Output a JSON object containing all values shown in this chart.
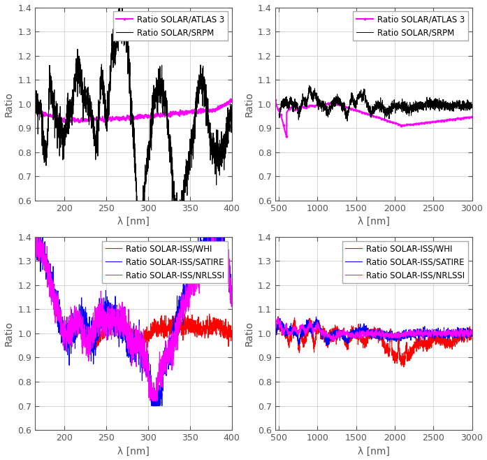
{
  "panels": [
    {
      "xlim": [
        165,
        400
      ],
      "ylim": [
        0.6,
        1.4
      ],
      "xticks": [
        200,
        250,
        300,
        350,
        400
      ],
      "yticks": [
        0.6,
        0.7,
        0.8,
        0.9,
        1.0,
        1.1,
        1.2,
        1.3,
        1.4
      ],
      "xlabel": "λ [nm]",
      "ylabel": "Ratio",
      "legend": [
        "Ratio SOLAR/ATLAS 3",
        "Ratio SOLAR/SRPM"
      ],
      "legend_colors": [
        "#ff00ff",
        "#000000"
      ]
    },
    {
      "xlim": [
        450,
        3000
      ],
      "ylim": [
        0.6,
        1.4
      ],
      "xticks": [
        500,
        1000,
        1500,
        2000,
        2500,
        3000
      ],
      "yticks": [
        0.6,
        0.7,
        0.8,
        0.9,
        1.0,
        1.1,
        1.2,
        1.3,
        1.4
      ],
      "xlabel": "λ [nm]",
      "ylabel": "Ratio",
      "legend": [
        "Ratio SOLAR/ATLAS 3",
        "Ratio SOLAR/SRPM"
      ],
      "legend_colors": [
        "#ff00ff",
        "#000000"
      ]
    },
    {
      "xlim": [
        165,
        400
      ],
      "ylim": [
        0.6,
        1.4
      ],
      "xticks": [
        200,
        250,
        300,
        350,
        400
      ],
      "yticks": [
        0.6,
        0.7,
        0.8,
        0.9,
        1.0,
        1.1,
        1.2,
        1.3,
        1.4
      ],
      "xlabel": "λ [nm]",
      "ylabel": "Ratio",
      "legend": [
        "Ratio SOLAR-ISS/WHI",
        "Ratio SOLAR-ISS/SATIRE",
        "Ratio SOLAR-ISS/NRLSSI"
      ],
      "legend_colors": [
        "#ff0000",
        "#0000ff",
        "#ff00ff"
      ]
    },
    {
      "xlim": [
        450,
        3000
      ],
      "ylim": [
        0.6,
        1.4
      ],
      "xticks": [
        500,
        1000,
        1500,
        2000,
        2500,
        3000
      ],
      "yticks": [
        0.6,
        0.7,
        0.8,
        0.9,
        1.0,
        1.1,
        1.2,
        1.3,
        1.4
      ],
      "xlabel": "λ [nm]",
      "ylabel": "Ratio",
      "legend": [
        "Ratio SOLAR-ISS/WHI",
        "Ratio SOLAR-ISS/SATIRE",
        "Ratio SOLAR-ISS/NRLSSI"
      ],
      "legend_colors": [
        "#ff0000",
        "#0000ff",
        "#ff00ff"
      ]
    }
  ],
  "background_color": "#ffffff",
  "grid_color": "#c8c8c8",
  "tick_color": "#555555",
  "label_fontsize": 10,
  "tick_fontsize": 9,
  "legend_fontsize": 8.5
}
